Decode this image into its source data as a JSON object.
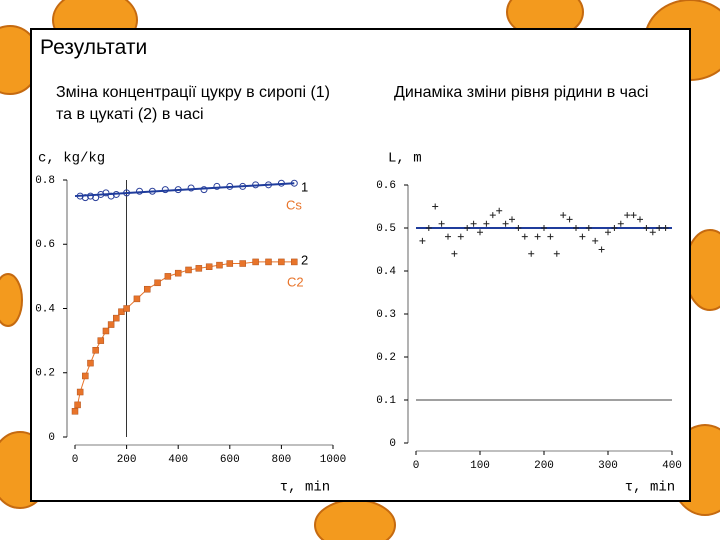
{
  "title": "Результати",
  "captions": [
    "Зміна концентрації цукру в сиропі (1) та в цукаті (2) в часі",
    "Динаміка зміни рівня рідини в часі"
  ],
  "chart_data": [
    {
      "type": "scatter",
      "x_label": "τ, min",
      "y_label": "c, kg/kg",
      "xlim": [
        0,
        1000
      ],
      "xticks": [
        0,
        200,
        400,
        600,
        800,
        1000
      ],
      "ylim": [
        0,
        0.8
      ],
      "yticks": [
        0,
        0.2,
        0.4,
        0.6,
        0.8
      ],
      "vline": 200,
      "annotations": [
        "1",
        "Cs",
        "2",
        "C2"
      ],
      "series": [
        {
          "color": "#2a3f9a",
          "marker": "circle",
          "x": [
            20,
            40,
            60,
            80,
            100,
            120,
            140,
            160,
            200,
            250,
            300,
            350,
            400,
            450,
            500,
            550,
            600,
            650,
            700,
            750,
            800,
            850
          ],
          "values": [
            0.75,
            0.745,
            0.75,
            0.745,
            0.755,
            0.76,
            0.75,
            0.755,
            0.76,
            0.765,
            0.765,
            0.77,
            0.77,
            0.775,
            0.77,
            0.78,
            0.78,
            0.78,
            0.785,
            0.785,
            0.79,
            0.79
          ]
        },
        {
          "color": "#1f3c9c",
          "x": [
            0,
            850
          ],
          "values": [
            0.75,
            0.79
          ]
        },
        {
          "color": "#e8742a",
          "marker": "square",
          "line": true,
          "x": [
            0,
            10,
            20,
            40,
            60,
            80,
            100,
            120,
            140,
            160,
            180,
            200,
            240,
            280,
            320,
            360,
            400,
            440,
            480,
            520,
            560,
            600,
            650,
            700,
            750,
            800,
            850
          ],
          "values": [
            0.08,
            0.1,
            0.14,
            0.19,
            0.23,
            0.27,
            0.3,
            0.33,
            0.35,
            0.37,
            0.39,
            0.4,
            0.43,
            0.46,
            0.48,
            0.5,
            0.51,
            0.52,
            0.525,
            0.53,
            0.535,
            0.54,
            0.54,
            0.545,
            0.545,
            0.545,
            0.545
          ]
        }
      ]
    },
    {
      "type": "scatter",
      "x_label": "τ, min",
      "y_label": "L, m",
      "xlim": [
        0,
        400
      ],
      "xticks": [
        0,
        100,
        200,
        300,
        400
      ],
      "ylim": [
        0,
        0.6
      ],
      "yticks": [
        0,
        0.1,
        0.2,
        0.3,
        0.4,
        0.5,
        0.6
      ],
      "hline": 0.1,
      "series": [
        {
          "color": "#1f3c9c",
          "x": [
            0,
            400
          ],
          "values": [
            0.5,
            0.5
          ]
        },
        {
          "color": "#222222",
          "marker": "plus",
          "x": [
            10,
            20,
            30,
            40,
            50,
            60,
            70,
            80,
            90,
            100,
            110,
            120,
            130,
            140,
            150,
            160,
            170,
            180,
            190,
            200,
            210,
            220,
            230,
            240,
            250,
            260,
            270,
            280,
            290,
            300,
            310,
            320,
            330,
            340,
            350,
            360,
            370,
            380,
            390
          ],
          "values": [
            0.47,
            0.5,
            0.55,
            0.51,
            0.48,
            0.44,
            0.48,
            0.5,
            0.51,
            0.49,
            0.51,
            0.53,
            0.54,
            0.51,
            0.52,
            0.5,
            0.48,
            0.44,
            0.48,
            0.5,
            0.48,
            0.44,
            0.53,
            0.52,
            0.5,
            0.48,
            0.5,
            0.47,
            0.45,
            0.49,
            0.5,
            0.51,
            0.53,
            0.53,
            0.52,
            0.5,
            0.49,
            0.5,
            0.5
          ]
        }
      ]
    }
  ]
}
